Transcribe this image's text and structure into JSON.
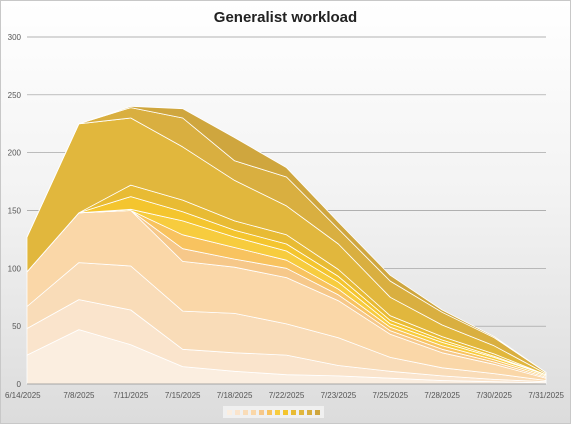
{
  "chart_data": {
    "type": "area",
    "stacked": true,
    "title": "Generalist workload",
    "xlabel": "",
    "ylabel": "",
    "categories": [
      "6/14/2025",
      "7/8/2025",
      "7/11/2025",
      "7/15/2025",
      "7/18/2025",
      "7/22/2025",
      "7/23/2025",
      "7/25/2025",
      "7/28/2025",
      "7/30/2025",
      "7/31/2025"
    ],
    "ylim": [
      0,
      300
    ],
    "yticks": [
      0,
      50,
      100,
      150,
      200,
      250,
      300
    ],
    "grid": true,
    "legend_position": "bottom",
    "series": [
      {
        "color": "#fbeee0",
        "values": [
          25,
          47,
          34,
          15,
          11,
          8,
          7,
          5,
          3,
          2,
          1
        ]
      },
      {
        "color": "#fae4cc",
        "values": [
          23,
          26,
          30,
          15,
          16,
          17,
          9,
          6,
          4,
          2,
          1
        ]
      },
      {
        "color": "#f9dcb8",
        "values": [
          19,
          32,
          38,
          33,
          34,
          27,
          24,
          12,
          7,
          5,
          1
        ]
      },
      {
        "color": "#fad7a8",
        "values": [
          30,
          43,
          48,
          43,
          40,
          40,
          32,
          20,
          13,
          8,
          2
        ]
      },
      {
        "color": "#f6c88a",
        "values": [
          0,
          0,
          0,
          11,
          7,
          8,
          5,
          3,
          3,
          2,
          1
        ]
      },
      {
        "color": "#f8c35f",
        "values": [
          0,
          0,
          0,
          12,
          10,
          7,
          5,
          3,
          3,
          2,
          1
        ]
      },
      {
        "color": "#f7cc3e",
        "values": [
          0,
          0,
          1,
          12,
          9,
          8,
          6,
          3,
          3,
          2,
          1
        ]
      },
      {
        "color": "#f4c52e",
        "values": [
          0,
          0,
          11,
          8,
          6,
          6,
          5,
          3,
          2,
          1,
          0
        ]
      },
      {
        "color": "#e8bb34",
        "values": [
          0,
          0,
          10,
          10,
          8,
          8,
          6,
          4,
          3,
          2,
          0
        ]
      },
      {
        "color": "#e1b73d",
        "values": [
          30,
          77,
          58,
          46,
          35,
          25,
          22,
          16,
          10,
          7,
          1
        ]
      },
      {
        "color": "#d9af40",
        "values": [
          0,
          0,
          9,
          25,
          17,
          25,
          13,
          14,
          11,
          7,
          1
        ]
      },
      {
        "color": "#cfa63e",
        "values": [
          0,
          0,
          1,
          8,
          20,
          8,
          6,
          5,
          2,
          1,
          0
        ]
      }
    ]
  }
}
